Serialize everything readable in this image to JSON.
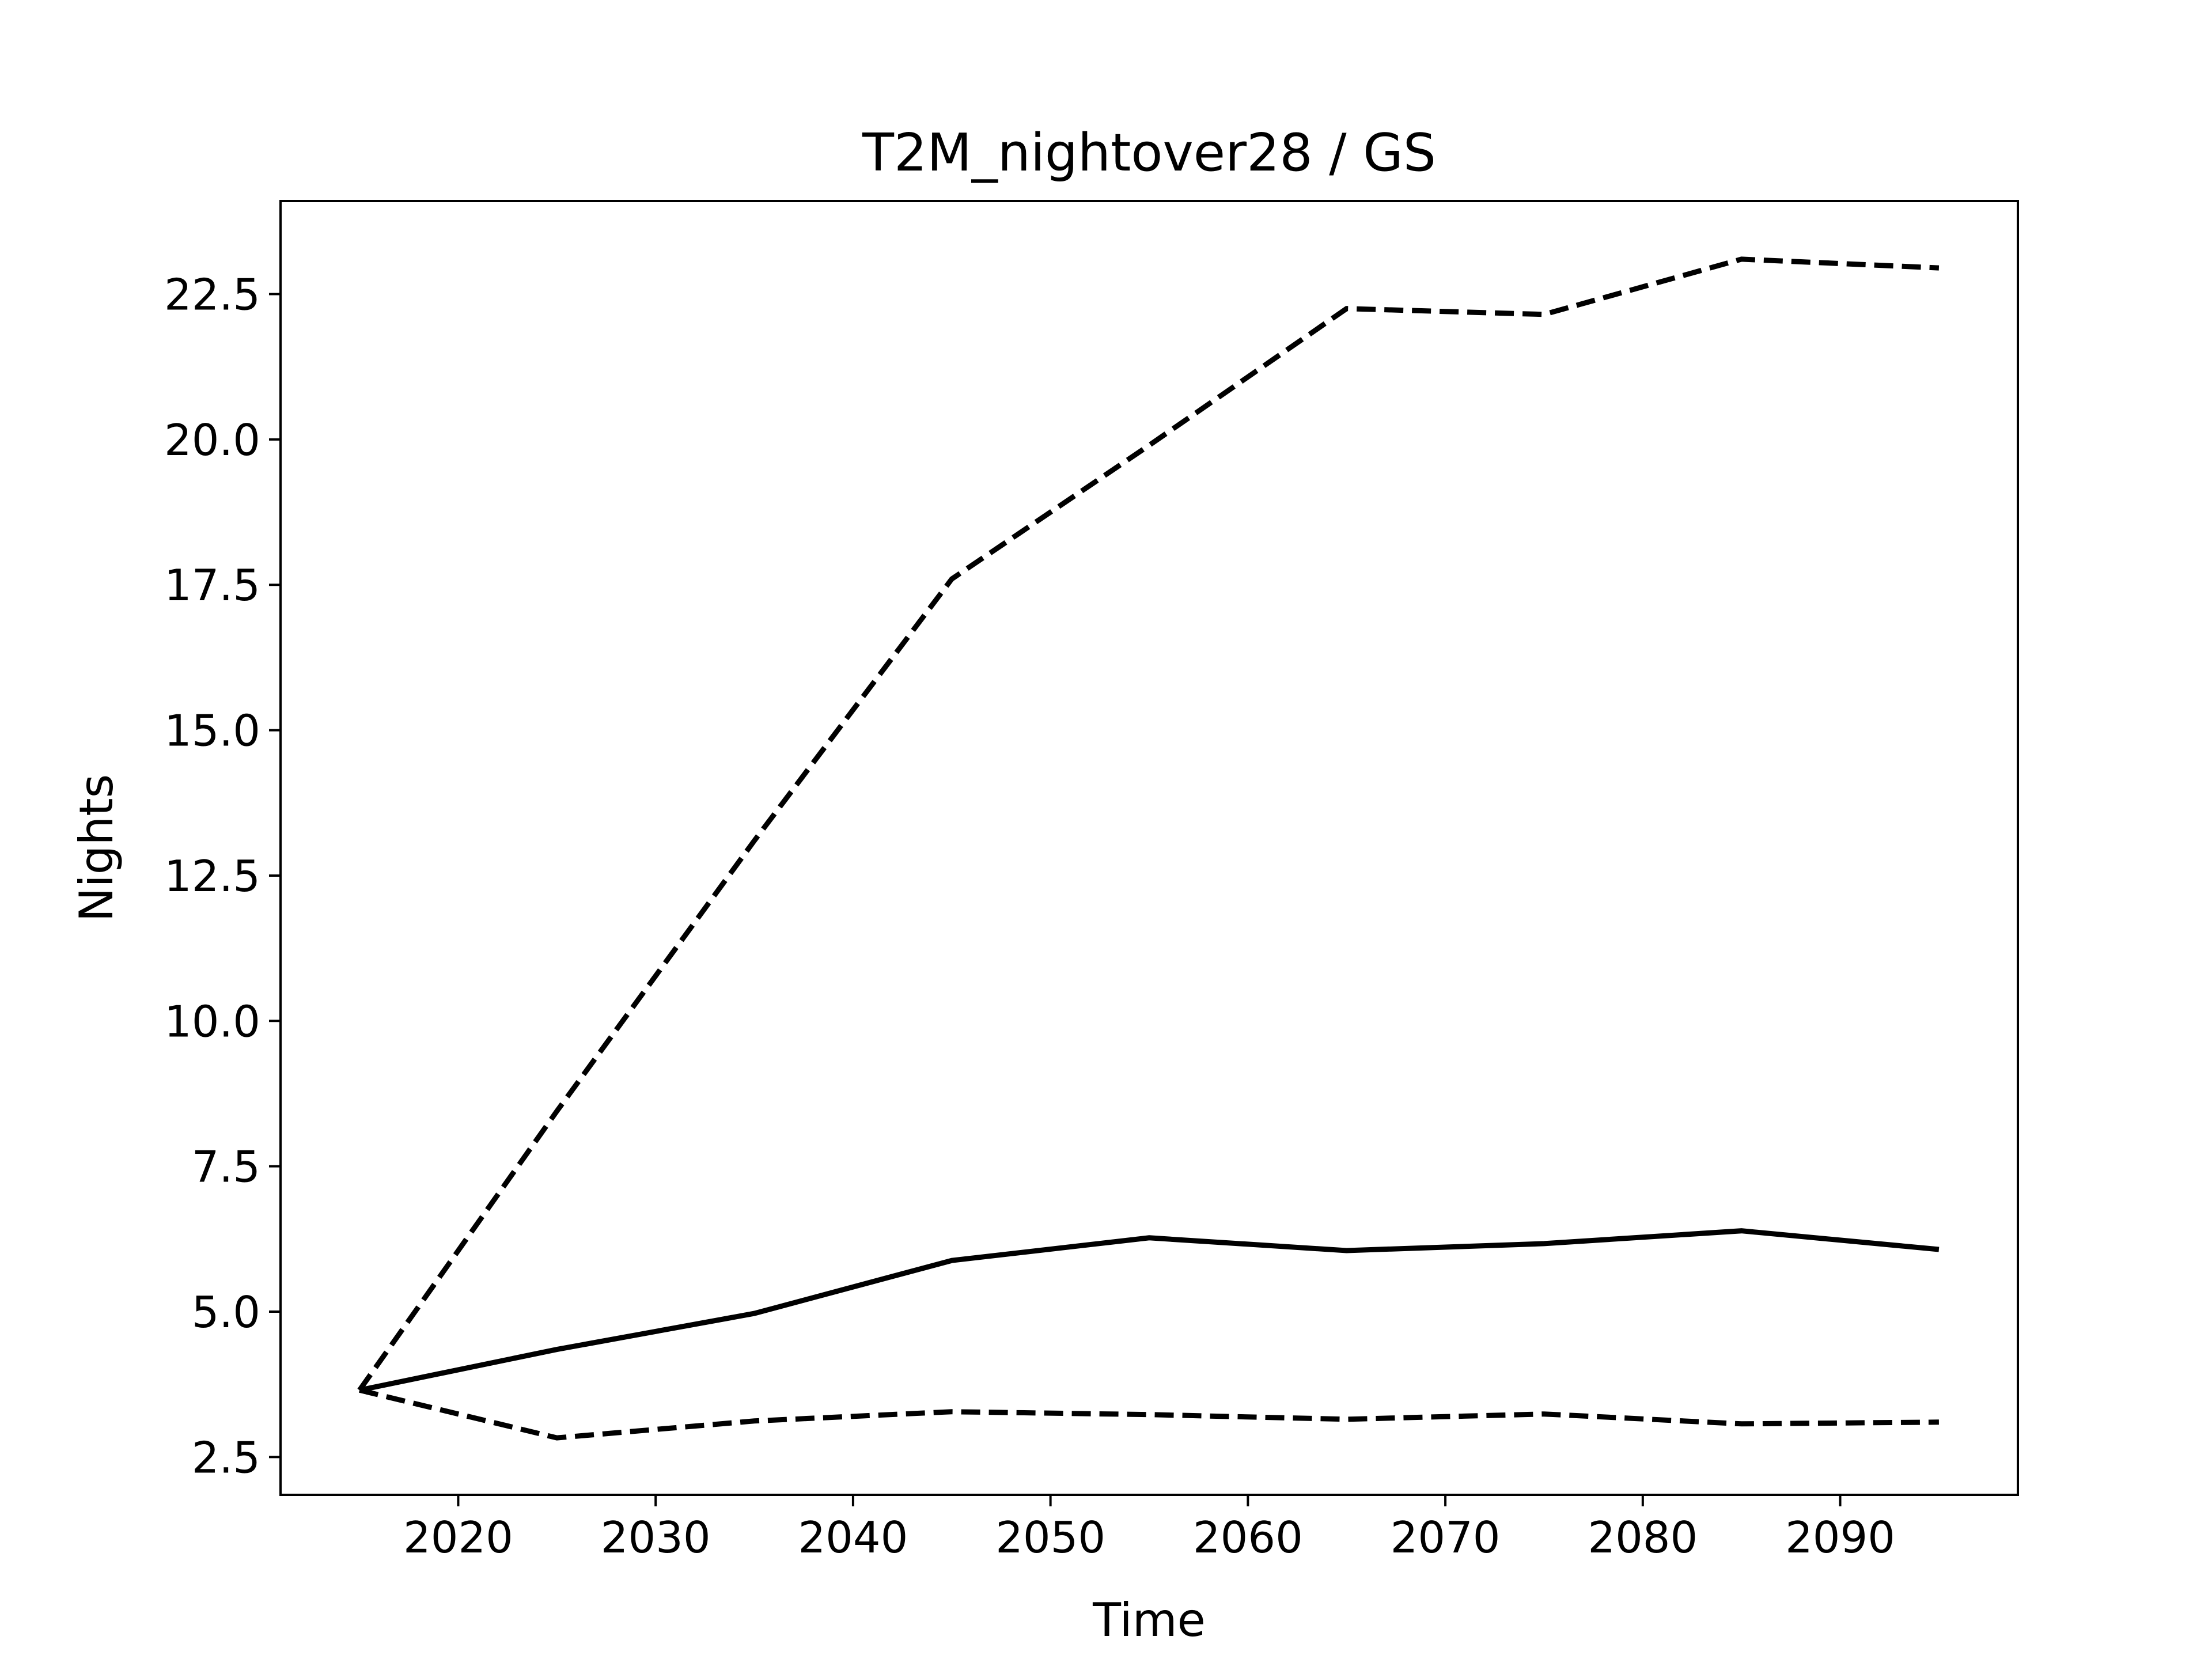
{
  "chart_data": {
    "type": "line",
    "title": "T2M_nightover28 / GS",
    "xlabel": "Time",
    "ylabel": "Nights",
    "x": [
      2015,
      2025,
      2035,
      2045,
      2055,
      2065,
      2075,
      2085,
      2095
    ],
    "xlim": [
      2011,
      2099
    ],
    "ylim": [
      1.85,
      24.1
    ],
    "xticks": [
      2020,
      2030,
      2040,
      2050,
      2060,
      2070,
      2080,
      2090
    ],
    "yticks": [
      2.5,
      5.0,
      7.5,
      10.0,
      12.5,
      15.0,
      17.5,
      20.0,
      22.5
    ],
    "ytick_labels": [
      "2.5",
      "5.0",
      "7.5",
      "10.0",
      "12.5",
      "15.0",
      "17.5",
      "20.0",
      "22.5"
    ],
    "grid": false,
    "series": [
      {
        "line_style": "dashed",
        "color": "#000000",
        "values": [
          3.65,
          8.45,
          13.1,
          17.6,
          19.9,
          22.25,
          22.15,
          23.1,
          22.95
        ]
      },
      {
        "line_style": "solid",
        "color": "#000000",
        "values": [
          3.65,
          4.35,
          4.97,
          5.88,
          6.27,
          6.05,
          6.17,
          6.39,
          6.07
        ]
      },
      {
        "line_style": "dashed",
        "color": "#000000",
        "values": [
          3.65,
          2.83,
          3.12,
          3.28,
          3.23,
          3.15,
          3.24,
          3.07,
          3.1
        ]
      }
    ]
  }
}
